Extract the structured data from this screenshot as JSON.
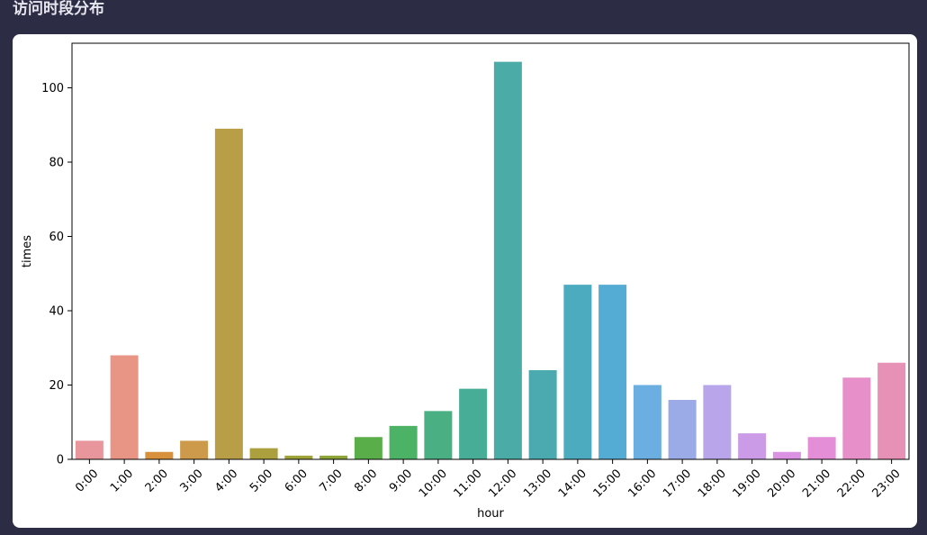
{
  "page": {
    "title": "访问时段分布"
  },
  "chart_data": {
    "type": "bar",
    "title": "",
    "xlabel": "hour",
    "ylabel": "times",
    "categories": [
      "0:00",
      "1:00",
      "2:00",
      "3:00",
      "4:00",
      "5:00",
      "6:00",
      "7:00",
      "8:00",
      "9:00",
      "10:00",
      "11:00",
      "12:00",
      "13:00",
      "14:00",
      "15:00",
      "16:00",
      "17:00",
      "18:00",
      "19:00",
      "20:00",
      "21:00",
      "22:00",
      "23:00"
    ],
    "values": [
      5,
      28,
      2,
      5,
      89,
      3,
      1,
      1,
      6,
      9,
      13,
      19,
      107,
      24,
      47,
      47,
      20,
      16,
      20,
      7,
      2,
      6,
      22,
      26
    ],
    "colors": [
      "#e8959c",
      "#e89585",
      "#d7903c",
      "#cd9a4c",
      "#b99e48",
      "#aca03e",
      "#9ea33a",
      "#8da637",
      "#5aae49",
      "#4bb266",
      "#4ab083",
      "#48ad97",
      "#4aaba7",
      "#4baab0",
      "#4cabbf",
      "#54abd3",
      "#6aaee2",
      "#9aabe7",
      "#b9a6ea",
      "#cc9be8",
      "#db92e2",
      "#e38ed7",
      "#e68fc8",
      "#e891b6"
    ],
    "ylim": [
      0,
      112
    ],
    "yticks": [
      0,
      20,
      40,
      60,
      80,
      100
    ],
    "grid": false
  }
}
